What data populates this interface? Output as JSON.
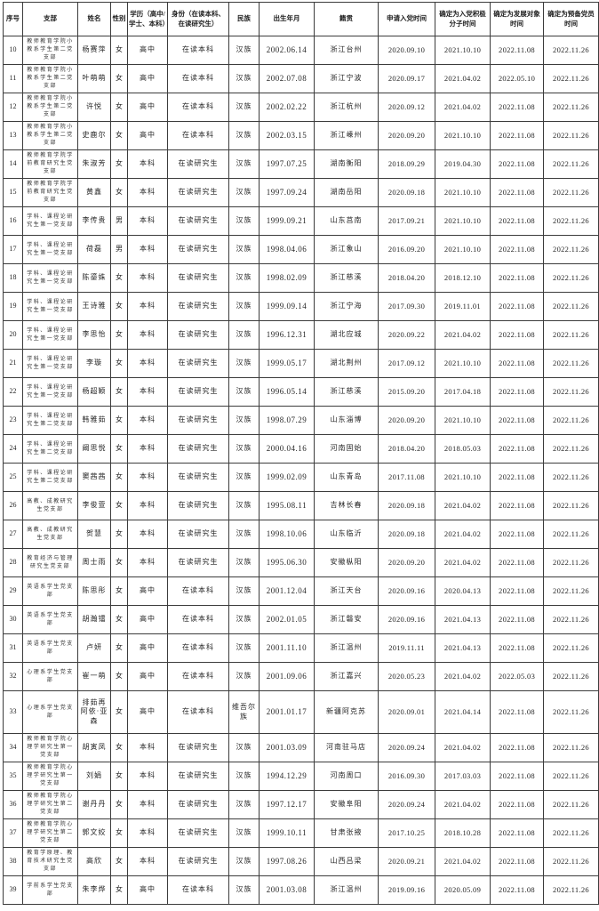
{
  "table": {
    "headers": [
      "序号",
      "支部",
      "姓名",
      "性别",
      "学历（高中/学士、本科）",
      "身份（在读本科、在读研究生）",
      "民族",
      "出生年月",
      "籍贯",
      "申请入党时间",
      "确定为入党积极分子时间",
      "确定为发展对象时间",
      "确定为预备党员时间"
    ],
    "rows": [
      [
        "10",
        "教师教育学院小教系学生第二党支部",
        "杨赛萍",
        "女",
        "高中",
        "在读本科",
        "汉族",
        "2002.06.14",
        "浙江台州",
        "2020.09.10",
        "2021.10.10",
        "2022.11.08",
        "2022.11.26"
      ],
      [
        "11",
        "教师教育学院小教系学生第二党支部",
        "叶萌萌",
        "女",
        "高中",
        "在读本科",
        "汉族",
        "2002.07.08",
        "浙江宁波",
        "2020.09.17",
        "2021.04.02",
        "2022.05.10",
        "2022.11.26"
      ],
      [
        "12",
        "教师教育学院小教系学生第二党支部",
        "许悦",
        "女",
        "高中",
        "在读本科",
        "汉族",
        "2002.02.22",
        "浙江杭州",
        "2020.09.12",
        "2021.04.02",
        "2022.11.08",
        "2022.11.26"
      ],
      [
        "13",
        "教师教育学院小教系学生第二党支部",
        "史鹿尔",
        "女",
        "高中",
        "在读本科",
        "汉族",
        "2002.03.15",
        "浙江嵊州",
        "2020.09.20",
        "2021.10.10",
        "2022.11.08",
        "2022.11.26"
      ],
      [
        "14",
        "教师教育学院学前教育研究生党支部",
        "朱淑芳",
        "女",
        "本科",
        "在读研究生",
        "汉族",
        "1997.07.25",
        "湖南衡阳",
        "2018.09.29",
        "2019.04.30",
        "2022.11.08",
        "2022.11.26"
      ],
      [
        "15",
        "教师教育学院学前教育研究生党支部",
        "黄鑫",
        "女",
        "本科",
        "在读研究生",
        "汉族",
        "1997.09.24",
        "湖南岳阳",
        "2020.09.18",
        "2021.10.10",
        "2022.11.08",
        "2022.11.26"
      ],
      [
        "16",
        "学科、课程论研究生第一党支部",
        "李传贵",
        "男",
        "本科",
        "在读研究生",
        "汉族",
        "1999.09.21",
        "山东莒南",
        "2017.09.21",
        "2021.10.10",
        "2022.11.08",
        "2022.11.26"
      ],
      [
        "17",
        "学科、课程论研究生第一党支部",
        "荷磊",
        "男",
        "本科",
        "在读研究生",
        "汉族",
        "1998.04.06",
        "浙江象山",
        "2016.09.20",
        "2021.10.10",
        "2022.11.08",
        "2022.11.26"
      ],
      [
        "18",
        "学科、课程论研究生第一党支部",
        "陈鎏姝",
        "女",
        "本科",
        "在读研究生",
        "汉族",
        "1998.02.09",
        "浙江慈溪",
        "2018.04.20",
        "2018.12.10",
        "2022.11.08",
        "2022.11.26"
      ],
      [
        "19",
        "学科、课程论研究生第一党支部",
        "王诗雅",
        "女",
        "本科",
        "在读研究生",
        "汉族",
        "1999.09.14",
        "浙江宁海",
        "2017.09.30",
        "2019.11.01",
        "2022.11.08",
        "2022.11.26"
      ],
      [
        "20",
        "学科、课程论研究生第一党支部",
        "李思怡",
        "女",
        "本科",
        "在读研究生",
        "汉族",
        "1996.12.31",
        "湖北应城",
        "2020.09.22",
        "2021.04.02",
        "2022.11.08",
        "2022.11.26"
      ],
      [
        "21",
        "学科、课程论研究生第一党支部",
        "李璇",
        "女",
        "本科",
        "在读研究生",
        "汉族",
        "1999.05.17",
        "湖北荆州",
        "2017.09.12",
        "2021.10.10",
        "2022.11.08",
        "2022.11.26"
      ],
      [
        "22",
        "学科、课程论研究生第一党支部",
        "杨超颖",
        "女",
        "本科",
        "在读研究生",
        "汉族",
        "1996.05.14",
        "浙江慈溪",
        "2015.09.20",
        "2017.04.18",
        "2022.11.08",
        "2022.11.26"
      ],
      [
        "23",
        "学科、课程论研究生第二党支部",
        "韩雅茹",
        "女",
        "本科",
        "在读研究生",
        "汉族",
        "1998.07.29",
        "山东淄博",
        "2020.09.20",
        "2021.10.10",
        "2022.11.08",
        "2022.11.26"
      ],
      [
        "24",
        "学科、课程论研究生第二党支部",
        "阚思悦",
        "女",
        "本科",
        "在读研究生",
        "汉族",
        "2000.04.16",
        "河南固始",
        "2018.04.20",
        "2018.05.03",
        "2022.11.08",
        "2022.11.26"
      ],
      [
        "25",
        "学科、课程论研究生第二党支部",
        "窦茜茜",
        "女",
        "本科",
        "在读研究生",
        "汉族",
        "1999.02.09",
        "山东青岛",
        "2017.11.08",
        "2021.10.10",
        "2022.11.08",
        "2022.11.26"
      ],
      [
        "26",
        "高教、成教研究生党支部",
        "李俊萱",
        "女",
        "本科",
        "在读研究生",
        "汉族",
        "1995.08.11",
        "吉林长春",
        "2020.09.18",
        "2021.04.02",
        "2022.11.08",
        "2022.11.26"
      ],
      [
        "27",
        "高教、成教研究生党支部",
        "贺慧",
        "女",
        "本科",
        "在读研究生",
        "汉族",
        "1998.10.06",
        "山东临沂",
        "2020.09.18",
        "2021.04.02",
        "2022.11.08",
        "2022.11.26"
      ],
      [
        "28",
        "教育经济与管理研究生党支部",
        "周士雨",
        "女",
        "本科",
        "在读研究生",
        "汉族",
        "1995.06.30",
        "安徽枞阳",
        "2020.09.20",
        "2021.04.02",
        "2022.11.08",
        "2022.11.26"
      ],
      [
        "29",
        "英语系学生党支部",
        "陈思彤",
        "女",
        "高中",
        "在读本科",
        "汉族",
        "2001.12.04",
        "浙江天台",
        "2020.09.16",
        "2020.04.13",
        "2022.11.08",
        "2022.11.26"
      ],
      [
        "30",
        "英语系学生党支部",
        "胡瀚镭",
        "女",
        "高中",
        "在读本科",
        "汉族",
        "2002.01.05",
        "浙江磐安",
        "2020.09.16",
        "2021.04.13",
        "2022.11.08",
        "2022.11.26"
      ],
      [
        "31",
        "英语系学生党支部",
        "卢妍",
        "女",
        "高中",
        "在读本科",
        "汉族",
        "2001.11.10",
        "浙江温州",
        "2019.11.11",
        "2021.04.13",
        "2022.11.08",
        "2022.11.26"
      ],
      [
        "32",
        "心理系学生党支部",
        "崔一萌",
        "女",
        "高中",
        "在读本科",
        "汉族",
        "2001.09.06",
        "浙江嘉兴",
        "2020.05.23",
        "2021.04.02",
        "2022.05.03",
        "2022.11.26"
      ],
      [
        "33",
        "心理系学生党支部",
        "排茹再阿依·亚森",
        "女",
        "高中",
        "在读本科",
        "维吾尔族",
        "2001.01.17",
        "新疆阿克苏",
        "2020.09.01",
        "2021.04.14",
        "2022.11.08",
        "2022.11.26"
      ],
      [
        "34",
        "教师教育学院心理学研究生第一党支部",
        "胡寅凤",
        "女",
        "本科",
        "在读研究生",
        "汉族",
        "2001.03.09",
        "河南驻马店",
        "2020.09.24",
        "2021.04.02",
        "2022.11.08",
        "2022.11.26"
      ],
      [
        "35",
        "教师教育学院心理学研究生第一党支部",
        "刘娟",
        "女",
        "本科",
        "在读研究生",
        "汉族",
        "1994.12.29",
        "河南周口",
        "2016.09.30",
        "2017.03.03",
        "2022.11.08",
        "2022.11.26"
      ],
      [
        "36",
        "教师教育学院心理学研究生第二党支部",
        "谢丹丹",
        "女",
        "本科",
        "在读研究生",
        "汉族",
        "1997.12.17",
        "安徽阜阳",
        "2020.09.24",
        "2021.04.02",
        "2022.11.08",
        "2022.11.26"
      ],
      [
        "37",
        "教师教育学院心理学研究生第二党支部",
        "郭文姣",
        "女",
        "本科",
        "在读研究生",
        "汉族",
        "1999.10.11",
        "甘肃张掖",
        "2017.10.25",
        "2018.10.28",
        "2022.11.08",
        "2022.11.26"
      ],
      [
        "38",
        "教育学原理、教育技术研究生党支部",
        "高欣",
        "女",
        "本科",
        "在读研究生",
        "汉族",
        "1997.08.26",
        "山西吕梁",
        "2020.09.21",
        "2021.04.02",
        "2022.11.08",
        "2022.11.26"
      ],
      [
        "39",
        "学前系学生党支部",
        "朱李烨",
        "女",
        "高中",
        "在读本科",
        "汉族",
        "2001.03.08",
        "浙江温州",
        "2019.09.16",
        "2020.05.09",
        "2022.11.08",
        "2022.11.26"
      ]
    ]
  },
  "colors": {
    "background": "#ffffff",
    "border": "#3c3c3c",
    "text": "#262626"
  }
}
